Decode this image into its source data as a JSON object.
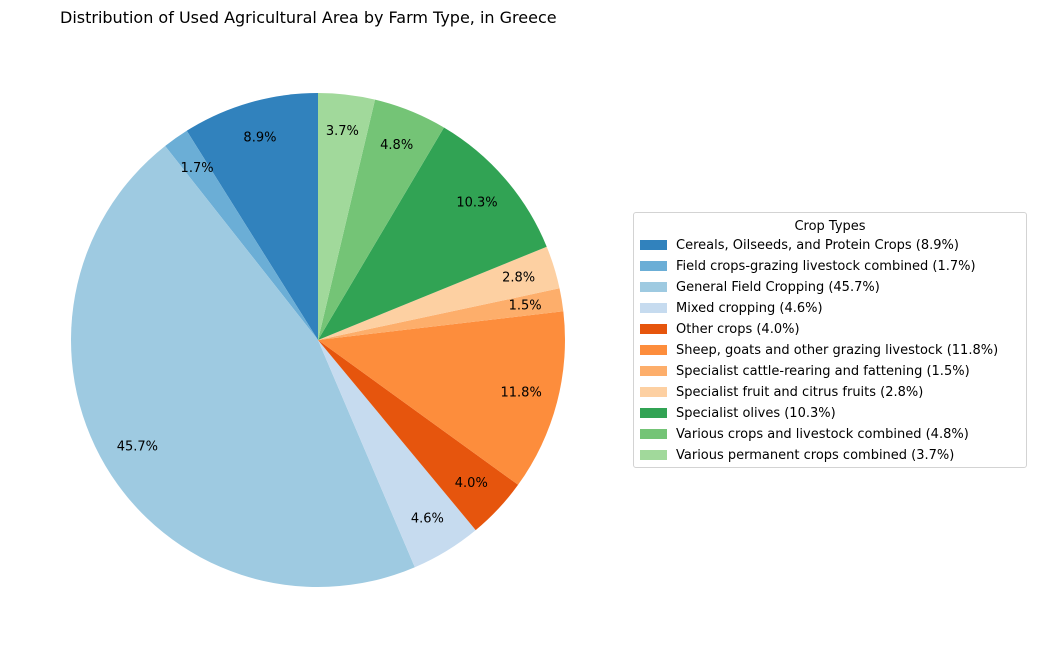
{
  "chart_data": {
    "type": "pie",
    "title": "Distribution of Used Agricultural Area by Farm Type, in Greece",
    "legend_title": "Crop Types",
    "legend_position": "right",
    "start_angle_deg": 90,
    "direction": "counterclockwise",
    "slices": [
      {
        "label": "Cereals, Oilseeds, and Protein Crops",
        "value": 8.9,
        "pct_label": "8.9%",
        "legend_label": "Cereals, Oilseeds, and Protein Crops (8.9%)",
        "color": "#3182bd"
      },
      {
        "label": "Field crops-grazing livestock combined",
        "value": 1.7,
        "pct_label": "1.7%",
        "legend_label": "Field crops-grazing livestock combined (1.7%)",
        "color": "#6baed6"
      },
      {
        "label": "General Field Cropping",
        "value": 45.7,
        "pct_label": "45.7%",
        "legend_label": "General Field Cropping (45.7%)",
        "color": "#9ecae1"
      },
      {
        "label": "Mixed cropping",
        "value": 4.6,
        "pct_label": "4.6%",
        "legend_label": "Mixed cropping (4.6%)",
        "color": "#c6dbef"
      },
      {
        "label": "Other crops",
        "value": 4.0,
        "pct_label": "4.0%",
        "legend_label": "Other crops (4.0%)",
        "color": "#e6550d"
      },
      {
        "label": "Sheep, goats and other grazing livestock",
        "value": 11.8,
        "pct_label": "11.8%",
        "legend_label": "Sheep, goats and other grazing livestock (11.8%)",
        "color": "#fd8d3c"
      },
      {
        "label": "Specialist cattle-rearing and fattening",
        "value": 1.5,
        "pct_label": "1.5%",
        "legend_label": "Specialist cattle-rearing and fattening (1.5%)",
        "color": "#fdae6b"
      },
      {
        "label": "Specialist fruit and citrus fruits",
        "value": 2.8,
        "pct_label": "2.8%",
        "legend_label": "Specialist fruit and citrus fruits (2.8%)",
        "color": "#fdd0a2"
      },
      {
        "label": "Specialist olives",
        "value": 10.3,
        "pct_label": "10.3%",
        "legend_label": "Specialist olives (10.3%)",
        "color": "#31a354"
      },
      {
        "label": "Various crops and livestock combined",
        "value": 4.8,
        "pct_label": "4.8%",
        "legend_label": "Various crops and livestock combined (4.8%)",
        "color": "#74c476"
      },
      {
        "label": "Various permanent crops combined",
        "value": 3.7,
        "pct_label": "3.7%",
        "legend_label": "Various permanent crops combined (3.7%)",
        "color": "#a1d99b"
      }
    ]
  }
}
